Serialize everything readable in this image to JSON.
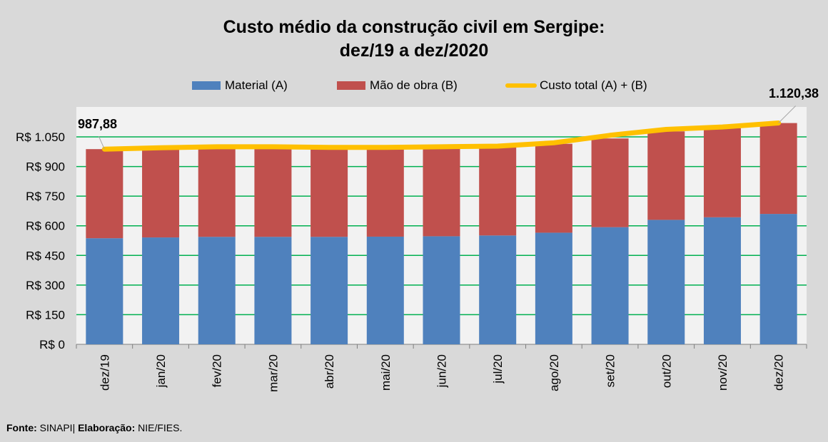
{
  "title_line1": "Custo médio da construção civil em Sergipe:",
  "title_line2": "dez/19 a dez/2020",
  "colors": {
    "material": "#4f81bd",
    "mao_de_obra": "#c0504d",
    "custo_total": "#ffc000",
    "grid": "#00b050",
    "plot_bg": "#f2f2f2"
  },
  "footer": {
    "fonte_label": "Fonte:",
    "fonte_value": " SINAPI",
    "separator": "| ",
    "elaboracao_label": "Elaboração:",
    "elaboracao_value": " NIE/FIES."
  },
  "chart_data": {
    "type": "bar",
    "stacked": true,
    "title": "Custo médio da construção civil em Sergipe: dez/19 a dez/2020",
    "categories": [
      "dez/19",
      "jan/20",
      "fev/20",
      "mar/20",
      "abr/20",
      "mai/20",
      "jun/20",
      "jul/20",
      "ago/20",
      "set/20",
      "out/20",
      "nov/20",
      "dez/20"
    ],
    "series": [
      {
        "name": "Material (A)",
        "type": "bar",
        "values": [
          537,
          541,
          544,
          544,
          544,
          545,
          547,
          551,
          565,
          593,
          630,
          643,
          660
        ]
      },
      {
        "name": "Mão de obra (B)",
        "type": "bar",
        "values": [
          451,
          448,
          450,
          450,
          446,
          447,
          448,
          448,
          450,
          449,
          448,
          451,
          460
        ]
      },
      {
        "name": "Custo total (A) + (B)",
        "type": "line",
        "values": [
          987.88,
          995,
          1000,
          1000,
          997,
          997,
          1000,
          1003,
          1020,
          1058,
          1088,
          1100,
          1120.38
        ]
      }
    ],
    "y_ticks": [
      0,
      150,
      300,
      450,
      600,
      750,
      900,
      1050
    ],
    "y_tick_labels": [
      "R$ 0",
      "R$ 150",
      "R$ 300",
      "R$ 450",
      "R$ 600",
      "R$ 750",
      "R$ 900",
      "R$ 1.050"
    ],
    "ylim": [
      0,
      1050
    ],
    "grid": true,
    "legend": "top",
    "annotations": [
      {
        "index": 0,
        "text": "987,88"
      },
      {
        "index": 12,
        "text": "1.120,38"
      }
    ]
  }
}
